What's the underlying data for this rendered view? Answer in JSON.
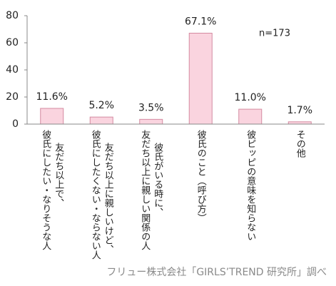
{
  "chart_data": {
    "type": "bar",
    "categories": [
      [
        "友だち以上で、",
        "彼氏にしたい・なりそうな人"
      ],
      [
        "友だち以上に親しいけど、",
        "彼氏にしたくない・ならない人"
      ],
      [
        "彼氏がいる時に、",
        "友だち以上に親しい関係の人"
      ],
      [
        "彼氏のこと（呼び方）"
      ],
      [
        "彼ピッピの意味を知らない"
      ],
      [
        "その他"
      ]
    ],
    "values": [
      11.6,
      5.2,
      3.5,
      67.1,
      11.0,
      1.7
    ],
    "value_labels": [
      "11.6%",
      "5.2%",
      "3.5%",
      "67.1%",
      "11.0%",
      "1.7%"
    ],
    "color": "#fad4df",
    "ylim": [
      0,
      80
    ],
    "yticks": [
      0,
      20,
      40,
      60,
      80
    ],
    "grid": false,
    "annotations": [
      "n=173"
    ],
    "source": "フリュー株式会社「GIRLS’TREND 研究所」調べ"
  }
}
